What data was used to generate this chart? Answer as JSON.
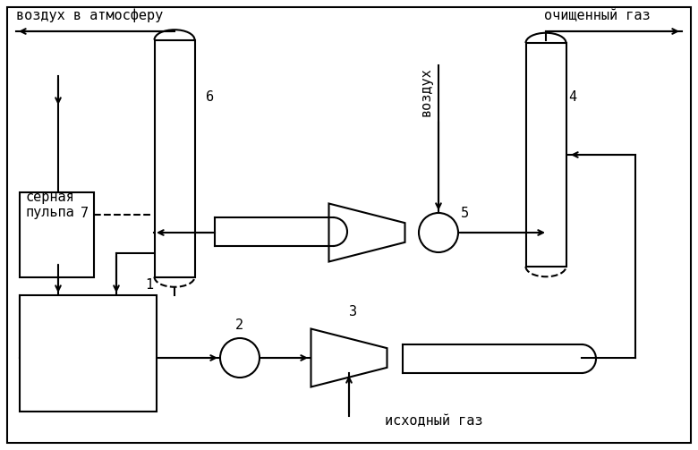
{
  "bg_color": "#ffffff",
  "line_color": "#000000",
  "figsize": [
    7.8,
    5.03
  ],
  "dpi": 100,
  "labels": {
    "vozduh_atm": "воздух в атмосферу",
    "ochishenny_gaz": "очищенный газ",
    "sernaya_pulpa": "серная\nпульпа",
    "vozduh": "воздух",
    "iskhodny_gaz": "исходный газ",
    "num1": "1",
    "num2": "2",
    "num3": "3",
    "num4": "4",
    "num5": "5",
    "num6": "6",
    "num7": "7"
  }
}
